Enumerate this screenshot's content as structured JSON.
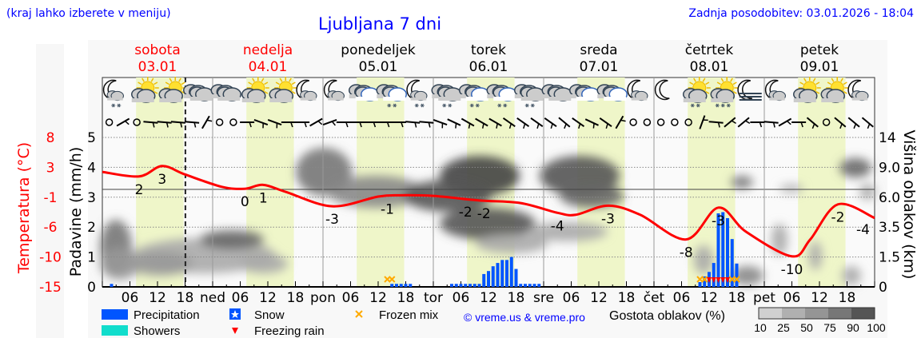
{
  "header": {
    "region_hint": "(kraj lahko izberete v meniju)",
    "title": "Ljubljana 7 dni",
    "updated": "Zadnja posodobitev: 03.01.2026 - 18:04"
  },
  "colors": {
    "temperature": "#ff0000",
    "precipitation": "#0055ff",
    "showers": "#11ddcc",
    "frozen_mix": "#ffaa00",
    "freezing_rain": "#ff0000",
    "daylight": "#eff6c9",
    "weekend_text": "#ff0000"
  },
  "days": [
    {
      "name": "sobota",
      "date": "03.01",
      "weekend": true,
      "axis_label": ""
    },
    {
      "name": "nedelja",
      "date": "04.01",
      "weekend": true,
      "axis_label": "ned"
    },
    {
      "name": "ponedeljek",
      "date": "05.01",
      "weekend": false,
      "axis_label": "pon"
    },
    {
      "name": "torek",
      "date": "06.01",
      "weekend": false,
      "axis_label": "tor"
    },
    {
      "name": "sreda",
      "date": "07.01",
      "weekend": false,
      "axis_label": "sre"
    },
    {
      "name": "četrtek",
      "date": "08.01",
      "weekend": false,
      "axis_label": "čet"
    },
    {
      "name": "petek",
      "date": "09.01",
      "weekend": false,
      "axis_label": "pet"
    }
  ],
  "weather_icons": [
    "moon-cloud-snow",
    "sun-cloud",
    "sun-cloud",
    "cloudy",
    "cloudy",
    "sun-cloud",
    "sun-cloud",
    "moon-cloud",
    "moon-cloud",
    "cloudy-blue",
    "cloudy-blue-snow",
    "moon-cloud-snow",
    "cloudy-snow",
    "cloudy-blue-snow",
    "cloudy-blue-snow",
    "cloudy-snow",
    "cloudy",
    "cloudy-blue",
    "cloudy-blue",
    "moon-cloud",
    "moon",
    "sun-cloud-snow",
    "sun-cloud-mix",
    "moon-fog",
    "moon-cloud",
    "sun-cloud",
    "sun-cloud",
    "moon-cloud"
  ],
  "wind": [
    "calm",
    -30,
    "calm",
    5,
    5,
    5,
    5,
    -60,
    "calm",
    "calm",
    0,
    20,
    20,
    0,
    0,
    -30,
    -20,
    0,
    0,
    0,
    0,
    0,
    5,
    5,
    20,
    25,
    30,
    30,
    30,
    35,
    35,
    35,
    35,
    40,
    35,
    25,
    35,
    -60,
    "calm",
    "calm",
    "calm",
    "calm",
    "calm",
    -70,
    5,
    -40,
    -40,
    0,
    5,
    -30,
    0,
    40,
    "calm",
    40,
    40,
    40
  ],
  "chart_data": {
    "type": "line+bar",
    "now": "03.01 18:04",
    "x_tick_hours": [
      "06",
      "12",
      "18"
    ],
    "axes": {
      "temperature": {
        "label": "Temperatura (°C)",
        "ticks": [
          "8",
          "3",
          "-1",
          "-6",
          "-10",
          "-15"
        ],
        "range": [
          -15,
          8
        ]
      },
      "precipitation": {
        "label": "Padavine (mm/h)",
        "ticks": [
          "0",
          "1",
          "2",
          "3",
          "4",
          "5"
        ],
        "range": [
          0,
          5
        ]
      },
      "cloud_height": {
        "label": "Višina oblakov (km)",
        "ticks": [
          "0",
          "1.5",
          "3.5",
          "6.0",
          "9.0",
          "14"
        ]
      }
    },
    "temperature": [
      [
        "03.01 00",
        2.7
      ],
      [
        "03.01 08",
        2.0
      ],
      [
        "03.01 13",
        3.6
      ],
      [
        "03.01 18",
        2.3
      ],
      [
        "04.01 02",
        0.4
      ],
      [
        "04.01 07",
        0.1
      ],
      [
        "04.01 11",
        0.7
      ],
      [
        "04.01 16",
        -0.4
      ],
      [
        "05.01 02",
        -2.6
      ],
      [
        "05.01 12",
        -1.1
      ],
      [
        "05.01 17",
        -0.9
      ],
      [
        "06.01 00",
        -1.0
      ],
      [
        "06.01 10",
        -1.7
      ],
      [
        "06.01 19",
        -2.1
      ],
      [
        "07.01 03",
        -3.6
      ],
      [
        "07.01 07",
        -3.9
      ],
      [
        "07.01 14",
        -2.5
      ],
      [
        "07.01 21",
        -3.9
      ],
      [
        "08.01 07",
        -7.7
      ],
      [
        "08.01 14",
        -2.8
      ],
      [
        "08.01 20",
        -6.5
      ],
      [
        "09.01 06",
        -10.3
      ],
      [
        "09.01 10",
        -7.7
      ],
      [
        "09.01 16",
        -2.3
      ],
      [
        "10.01 00",
        -4.4
      ]
    ],
    "temperature_labels": [
      [
        "03.01 08",
        "2"
      ],
      [
        "03.01 13",
        "3"
      ],
      [
        "04.01 07",
        "0"
      ],
      [
        "04.01 11",
        "1"
      ],
      [
        "05.01 02",
        "-3"
      ],
      [
        "05.01 14",
        "-1"
      ],
      [
        "06.01 07",
        "-2"
      ],
      [
        "06.01 11",
        "-2"
      ],
      [
        "07.01 03",
        "-4"
      ],
      [
        "07.01 14",
        "-3"
      ],
      [
        "08.01 07",
        "-8"
      ],
      [
        "08.01 14",
        "-3"
      ],
      [
        "09.01 06",
        "-10"
      ],
      [
        "09.01 16",
        "-2"
      ],
      [
        "10.01 00",
        "-4"
      ]
    ],
    "precipitation": [
      [
        "03.01 02",
        0.1
      ],
      [
        "05.01 15",
        0.1
      ],
      [
        "05.01 16",
        0.1
      ],
      [
        "05.01 17",
        0.1
      ],
      [
        "05.01 18",
        0.1
      ],
      [
        "05.01 19",
        0.1
      ],
      [
        "06.01 04",
        0.1
      ],
      [
        "06.01 05",
        0.1
      ],
      [
        "06.01 06",
        0.1
      ],
      [
        "06.01 07",
        0.1
      ],
      [
        "06.01 08",
        0.1
      ],
      [
        "06.01 09",
        0.1
      ],
      [
        "06.01 10",
        0.1
      ],
      [
        "06.01 11",
        0.43
      ],
      [
        "06.01 12",
        0.53
      ],
      [
        "06.01 13",
        0.69
      ],
      [
        "06.01 14",
        0.8
      ],
      [
        "06.01 15",
        0.9
      ],
      [
        "06.01 16",
        0.9
      ],
      [
        "06.01 17",
        1.0
      ],
      [
        "06.01 18",
        0.6
      ],
      [
        "06.01 19",
        0.1
      ],
      [
        "06.01 20",
        0.1
      ],
      [
        "06.01 21",
        0.1
      ],
      [
        "06.01 22",
        0.1
      ],
      [
        "06.01 23",
        0.1
      ],
      [
        "08.01 10",
        0.16
      ],
      [
        "08.01 11",
        0.35
      ],
      [
        "08.01 12",
        0.5
      ],
      [
        "08.01 13",
        0.8
      ],
      [
        "08.01 14",
        2.46
      ],
      [
        "08.01 15",
        2.5
      ],
      [
        "08.01 16",
        2.3
      ],
      [
        "08.01 17",
        1.6
      ],
      [
        "08.01 18",
        0.78
      ]
    ],
    "frozen_mix": [
      "05.01 14",
      "05.01 15",
      "08.01 10",
      "08.01 11",
      "08.01 17",
      "08.01 18"
    ],
    "freezing_rain": [
      "08.01 12",
      "08.01 13",
      "08.01 14",
      "08.01 15",
      "08.01 16"
    ],
    "daylight": [
      "07:20",
      "17:40"
    ]
  },
  "legend": {
    "precipitation": "Precipitation",
    "showers": "Showers",
    "snow": "Snow",
    "freezing_rain": "Freezing rain",
    "frozen_mix": "Frozen mix",
    "credit": "© vreme.us & vreme.pro",
    "cloud_density": "Gostota oblakov (%)",
    "cloud_density_ticks": [
      "10",
      "25",
      "50",
      "75",
      "90",
      "100"
    ],
    "cloud_density_colors": [
      "#d0d0d0",
      "#b0b0b0",
      "#959595",
      "#777777",
      "#555555"
    ]
  }
}
